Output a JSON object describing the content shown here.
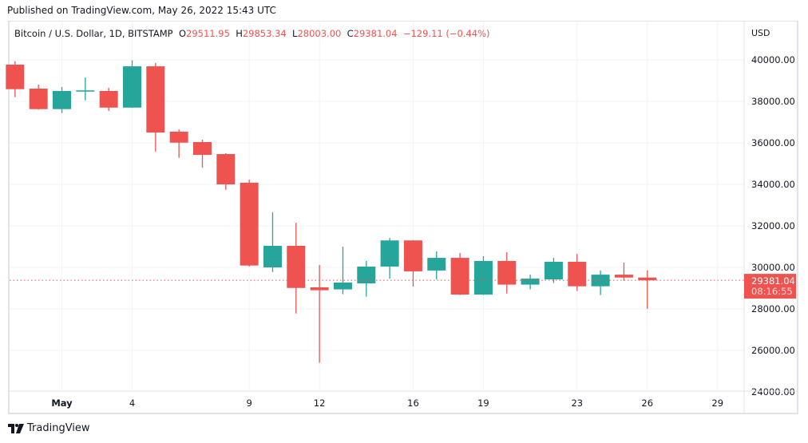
{
  "published": "Published on TradingView.com, May 26, 2022 15:43 UTC",
  "legend": {
    "symbol": "Bitcoin / U.S. Dollar, 1D, BITSTAMP",
    "o_label": "O",
    "o": "29511.95",
    "h_label": "H",
    "h": "29853.34",
    "l_label": "L",
    "l": "28003.00",
    "c_label": "C",
    "c": "29381.04",
    "change": "−129.11 (−0.44%)"
  },
  "currency": "USD",
  "last_price_label": "29381.04",
  "countdown": "08:16:55",
  "brand": "TradingView",
  "colors": {
    "up": "#26a69a",
    "down": "#ef5350",
    "grid": "#f0f3fa",
    "axis_text": "#131722"
  },
  "chart_data": {
    "type": "candlestick",
    "title": "Bitcoin / U.S. Dollar, 1D, BITSTAMP",
    "ylabel": "USD",
    "ylim": [
      23750,
      40650
    ],
    "yticks": [
      "40000.00",
      "38000.00",
      "36000.00",
      "34000.00",
      "32000.00",
      "30000.00",
      "28000.00",
      "26000.00",
      "24000.00"
    ],
    "xticks": [
      {
        "date": "2022-05-01",
        "label": "May"
      },
      {
        "date": "2022-05-04",
        "label": "4"
      },
      {
        "date": "2022-05-09",
        "label": "9"
      },
      {
        "date": "2022-05-12",
        "label": "12"
      },
      {
        "date": "2022-05-16",
        "label": "16"
      },
      {
        "date": "2022-05-19",
        "label": "19"
      },
      {
        "date": "2022-05-23",
        "label": "23"
      },
      {
        "date": "2022-05-26",
        "label": "26"
      },
      {
        "date": "2022-05-29",
        "label": "29"
      }
    ],
    "xlim": [
      "2022-04-28",
      "2022-06-01"
    ],
    "grid": true,
    "last_price": 29381.04,
    "candles": [
      {
        "date": "2022-04-29",
        "o": 39769,
        "h": 39935,
        "l": 38204,
        "c": 38588
      },
      {
        "date": "2022-04-30",
        "o": 38615,
        "h": 38808,
        "l": 37600,
        "c": 37627
      },
      {
        "date": "2022-05-01",
        "o": 37627,
        "h": 38692,
        "l": 37435,
        "c": 38500
      },
      {
        "date": "2022-05-02",
        "o": 38470,
        "h": 39150,
        "l": 38050,
        "c": 38530
      },
      {
        "date": "2022-05-03",
        "o": 38500,
        "h": 38650,
        "l": 37540,
        "c": 37700
      },
      {
        "date": "2022-05-04",
        "o": 37700,
        "h": 39980,
        "l": 37690,
        "c": 39690
      },
      {
        "date": "2022-05-05",
        "o": 39690,
        "h": 39850,
        "l": 35580,
        "c": 36500
      },
      {
        "date": "2022-05-06",
        "o": 36540,
        "h": 36650,
        "l": 35280,
        "c": 36010
      },
      {
        "date": "2022-05-07",
        "o": 36040,
        "h": 36150,
        "l": 34800,
        "c": 35420
      },
      {
        "date": "2022-05-08",
        "o": 35460,
        "h": 35500,
        "l": 33740,
        "c": 34000
      },
      {
        "date": "2022-05-09",
        "o": 34080,
        "h": 34230,
        "l": 30040,
        "c": 30090
      },
      {
        "date": "2022-05-10",
        "o": 30000,
        "h": 32650,
        "l": 29780,
        "c": 31040
      },
      {
        "date": "2022-05-11",
        "o": 31040,
        "h": 32150,
        "l": 27780,
        "c": 29010
      },
      {
        "date": "2022-05-12",
        "o": 29040,
        "h": 30120,
        "l": 25400,
        "c": 28900
      },
      {
        "date": "2022-05-13",
        "o": 28940,
        "h": 31000,
        "l": 28710,
        "c": 29270
      },
      {
        "date": "2022-05-14",
        "o": 29230,
        "h": 30310,
        "l": 28590,
        "c": 30040
      },
      {
        "date": "2022-05-15",
        "o": 30040,
        "h": 31420,
        "l": 29460,
        "c": 31300
      },
      {
        "date": "2022-05-16",
        "o": 31300,
        "h": 31320,
        "l": 29080,
        "c": 29810
      },
      {
        "date": "2022-05-17",
        "o": 29850,
        "h": 30770,
        "l": 29420,
        "c": 30460
      },
      {
        "date": "2022-05-18",
        "o": 30460,
        "h": 30690,
        "l": 28670,
        "c": 28690
      },
      {
        "date": "2022-05-19",
        "o": 28690,
        "h": 30540,
        "l": 28670,
        "c": 30310
      },
      {
        "date": "2022-05-20",
        "o": 30310,
        "h": 30730,
        "l": 28740,
        "c": 29170
      },
      {
        "date": "2022-05-21",
        "o": 29170,
        "h": 29650,
        "l": 28940,
        "c": 29460
      },
      {
        "date": "2022-05-22",
        "o": 29420,
        "h": 30460,
        "l": 29250,
        "c": 30270
      },
      {
        "date": "2022-05-23",
        "o": 30270,
        "h": 30650,
        "l": 28860,
        "c": 29090
      },
      {
        "date": "2022-05-24",
        "o": 29090,
        "h": 29850,
        "l": 28670,
        "c": 29650
      },
      {
        "date": "2022-05-25",
        "o": 29650,
        "h": 30230,
        "l": 29360,
        "c": 29510
      },
      {
        "date": "2022-05-26",
        "o": 29511.95,
        "h": 29853.34,
        "l": 28003.0,
        "c": 29381.04
      }
    ]
  }
}
